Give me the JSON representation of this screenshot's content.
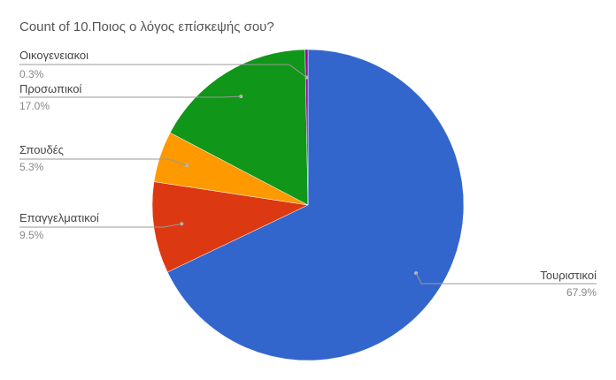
{
  "chart_data": {
    "type": "pie",
    "title": "Count of 10.Ποιος ο λόγος επίσκεψής σου?",
    "slices": [
      {
        "label": "Τουριστικοί",
        "value": 67.9,
        "percent_label": "67.9%",
        "color": "#3366cc"
      },
      {
        "label": "Επαγγελματικοί",
        "value": 9.5,
        "percent_label": "9.5%",
        "color": "#dc3912"
      },
      {
        "label": "Σπουδές",
        "value": 5.3,
        "percent_label": "5.3%",
        "color": "#ff9900"
      },
      {
        "label": "Προσωπικοί",
        "value": 17.0,
        "percent_label": "17.0%",
        "color": "#109618"
      },
      {
        "label": "Οικογενειακοι",
        "value": 0.3,
        "percent_label": "0.3%",
        "color": "#990099"
      }
    ],
    "legend": "none"
  }
}
